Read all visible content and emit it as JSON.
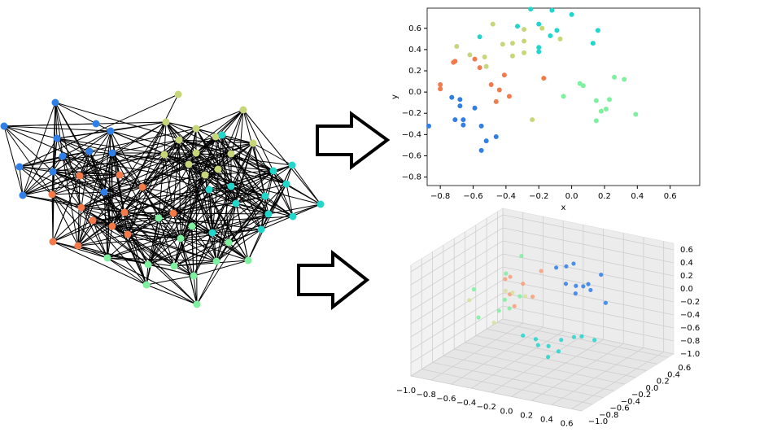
{
  "chart_data": [
    {
      "type": "scatter",
      "x_label": "x",
      "y_label": "y",
      "xlim": [
        -0.88,
        0.78
      ],
      "ylim": [
        -0.88,
        0.79
      ],
      "xticks": [
        {
          "value": -0.8,
          "label": "−0.8"
        },
        {
          "value": -0.6,
          "label": "−0.6"
        },
        {
          "value": -0.4,
          "label": "−0.4"
        },
        {
          "value": -0.2,
          "label": "−0.2"
        },
        {
          "value": 0,
          "label": "0.0"
        },
        0.2,
        0.4,
        0.6
      ],
      "yticks": [
        {
          "value": -0.8,
          "label": "−0.8"
        },
        {
          "value": -0.6,
          "label": "−0.6"
        },
        {
          "value": -0.4,
          "label": "−0.4"
        },
        {
          "value": -0.2,
          "label": "−0.2"
        },
        {
          "value": 0,
          "label": "0.0"
        },
        0.2,
        0.4,
        0.6
      ],
      "series": [
        {
          "color": "#2f7fe8",
          "x": [
            -0.68,
            -0.68,
            -0.71,
            -0.66,
            -0.66,
            -0.59,
            -0.55,
            -0.52,
            -0.46,
            -0.55,
            -0.73,
            -0.87
          ],
          "values": [
            -0.07,
            -0.13,
            -0.26,
            -0.26,
            -0.31,
            -0.15,
            -0.32,
            -0.46,
            -0.42,
            -0.55,
            -0.05,
            -0.32
          ]
        },
        {
          "color": "#f47a4a",
          "x": [
            -0.8,
            -0.8,
            -0.72,
            -0.71,
            -0.59,
            -0.56,
            -0.49,
            -0.44,
            -0.46,
            -0.41,
            -0.38,
            -0.17
          ],
          "values": [
            0.07,
            0.03,
            0.28,
            0.29,
            0.31,
            0.23,
            0.07,
            0.02,
            -0.09,
            0.16,
            -0.04,
            0.13
          ]
        },
        {
          "color": "#c8d67a",
          "x": [
            -0.7,
            -0.62,
            -0.53,
            -0.52,
            -0.48,
            -0.42,
            -0.36,
            -0.36,
            -0.29,
            -0.29,
            -0.29,
            -0.18,
            -0.07,
            -0.24
          ],
          "values": [
            0.43,
            0.35,
            0.33,
            0.24,
            0.64,
            0.45,
            0.46,
            0.34,
            0.59,
            0.48,
            0.37,
            0.6,
            0.5,
            -0.26
          ]
        },
        {
          "color": "#22d6cc",
          "x": [
            -0.56,
            -0.33,
            -0.25,
            -0.2,
            -0.2,
            -0.2,
            -0.13,
            -0.12,
            -0.09,
            0,
            0.13,
            0.16
          ],
          "values": [
            0.52,
            0.62,
            0.78,
            0.64,
            0.42,
            0.38,
            0.53,
            0.77,
            0.58,
            0.73,
            0.46,
            0.58
          ]
        },
        {
          "color": "#7ef0a0",
          "x": [
            -0.05,
            0.05,
            0.07,
            0.15,
            0.15,
            0.18,
            0.21,
            0.23,
            0.26,
            0.32,
            0.39
          ],
          "values": [
            -0.04,
            0.08,
            0.06,
            -0.08,
            -0.27,
            -0.18,
            -0.16,
            -0.07,
            0.14,
            0.12,
            -0.21
          ]
        }
      ]
    },
    {
      "type": "scatter3d",
      "xlim": [
        -1,
        0.7
      ],
      "ylim": [
        -1,
        0.7
      ],
      "zlim": [
        -1,
        0.7
      ],
      "xticks": [
        {
          "value": -1,
          "label": "−1.0"
        },
        {
          "value": -0.8,
          "label": "−0.8"
        },
        {
          "value": -0.6,
          "label": "−0.6"
        },
        {
          "value": -0.4,
          "label": "−0.4"
        },
        {
          "value": -0.2,
          "label": "−0.2"
        },
        {
          "value": 0,
          "label": "0.0"
        },
        0.2,
        0.4,
        0.6
      ],
      "yticks": [
        {
          "value": -1,
          "label": "−1.0"
        },
        {
          "value": -0.8,
          "label": "−0.8"
        },
        {
          "value": -0.6,
          "label": "−0.6"
        },
        {
          "value": -0.4,
          "label": "−0.4"
        },
        {
          "value": -0.2,
          "label": "−0.2"
        },
        {
          "value": 0,
          "label": "0.0"
        },
        0.2,
        0.4,
        0.6
      ],
      "zticks": [
        {
          "value": -1,
          "label": "−1.0"
        },
        {
          "value": -0.8,
          "label": "−0.8"
        },
        {
          "value": -0.6,
          "label": "−0.6"
        },
        {
          "value": -0.4,
          "label": "−0.4"
        },
        {
          "value": -0.2,
          "label": "−0.2"
        },
        {
          "value": 0,
          "label": "0.0"
        },
        0.2,
        0.4,
        0.6
      ],
      "series": [
        {
          "color": "#2f7fe8",
          "x": [
            -0.2,
            -0.1,
            0,
            -0.05,
            0.05,
            0.15,
            0.2,
            0.3,
            0.1,
            0.4,
            0.25
          ],
          "y": [
            0.2,
            0.2,
            0.15,
            0.1,
            0.1,
            0.05,
            0.05,
            0.1,
            0,
            0,
            0
          ],
          "z": [
            0.3,
            0.35,
            0.45,
            0.15,
            0.15,
            0.2,
            0.25,
            0.4,
            0.1,
            0.05,
            0.2
          ]
        },
        {
          "color": "#22d6cc",
          "x": [
            -0.1,
            0,
            0.05,
            0.1,
            0.2,
            0.3,
            0.35,
            0.2,
            0.15,
            0.45
          ],
          "y": [
            -0.6,
            -0.55,
            -0.6,
            -0.5,
            -0.45,
            -0.4,
            -0.35,
            -0.5,
            -0.6,
            -0.3
          ],
          "z": [
            -0.3,
            -0.35,
            -0.4,
            -0.45,
            -0.35,
            -0.3,
            -0.3,
            -0.5,
            -0.55,
            -0.35
          ]
        },
        {
          "color": "#7ef0a0",
          "x": [
            -0.75,
            -0.7,
            -0.6,
            -0.55,
            -0.5,
            -0.45,
            -0.65,
            -0.4
          ],
          "y": [
            -0.3,
            0.2,
            0.3,
            -0.1,
            -0.3,
            -0.2,
            -0.4,
            -0.1
          ],
          "z": [
            0.05,
            0.05,
            0.3,
            -0.15,
            -0.2,
            -0.2,
            -0.3,
            -0.05
          ]
        },
        {
          "color": "#f7a07a",
          "x": [
            -0.6,
            -0.55,
            -0.35,
            -0.5,
            -0.3,
            -0.45,
            -0.4
          ],
          "y": [
            0,
            0,
            0.2,
            -0.1,
            -0.05,
            0.05,
            -0.2
          ],
          "z": [
            0.1,
            0.15,
            0.2,
            -0.05,
            -0.05,
            0.05,
            -0.15
          ]
        },
        {
          "color": "#d9df9a",
          "x": [
            -0.85,
            -0.55,
            -0.4,
            -0.5,
            -0.65
          ],
          "y": [
            -0.2,
            -0.3,
            0,
            -0.05,
            0.1
          ],
          "z": [
            -0.2,
            -0.4,
            -0.1,
            -0.05,
            -0.15
          ]
        }
      ]
    }
  ]
}
